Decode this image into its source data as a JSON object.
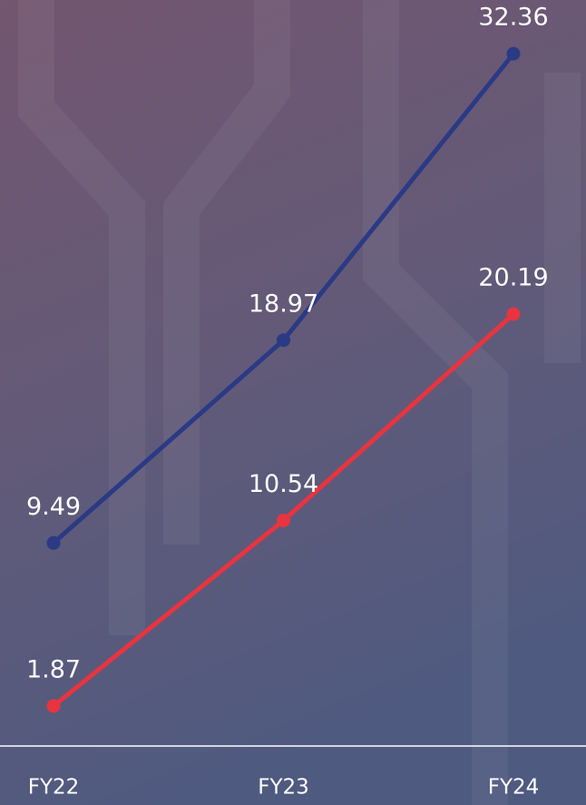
{
  "chart_data": {
    "type": "line",
    "categories": [
      "FY22",
      "FY23",
      "FY24"
    ],
    "series": [
      {
        "color": "#2b3a85",
        "values": [
          9.49,
          18.97,
          32.36
        ]
      },
      {
        "color": "#e8343f",
        "values": [
          1.87,
          10.54,
          20.19
        ]
      }
    ],
    "ylim": [
      0,
      35
    ]
  }
}
